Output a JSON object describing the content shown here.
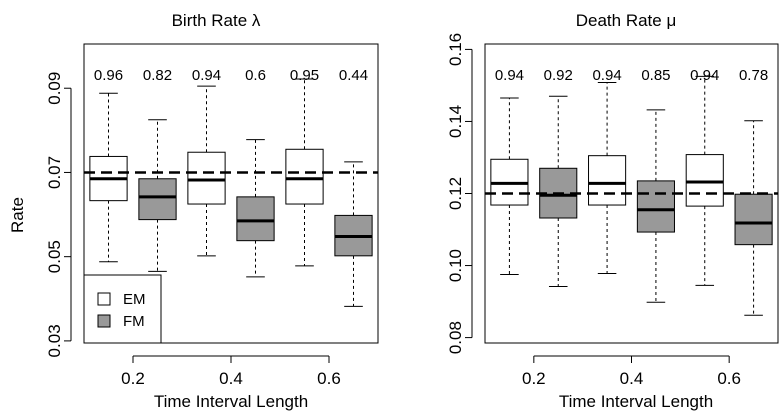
{
  "chart_data": [
    {
      "type": "box",
      "title": "Birth Rate λ",
      "xlabel": "Time Interval Length",
      "ylabel": "Rate",
      "ylim": [
        0.0295,
        0.1005
      ],
      "xlim": [
        0.1,
        0.7
      ],
      "yticks": [
        0.03,
        0.05,
        0.07,
        0.09
      ],
      "ytick_labels": [
        "0.03",
        "0.05",
        "0.07",
        "0.09"
      ],
      "xticks": [
        0.2,
        0.4,
        0.6
      ],
      "xtick_labels": [
        "0.2",
        "0.4",
        "0.6"
      ],
      "reference_line": 0.07,
      "legend": {
        "placement": "bottom-left",
        "entries": [
          {
            "label": "EM",
            "color": "#ffffff"
          },
          {
            "label": "FM",
            "color": "#999999"
          }
        ]
      },
      "boxes": [
        {
          "x": 0.15,
          "group": "EM",
          "whisker_low": 0.0488,
          "q1": 0.0633,
          "median": 0.0685,
          "q3": 0.0738,
          "whisker_high": 0.0888,
          "label": "0.96"
        },
        {
          "x": 0.25,
          "group": "FM",
          "whisker_low": 0.0465,
          "q1": 0.0588,
          "median": 0.0642,
          "q3": 0.0685,
          "whisker_high": 0.0825,
          "label": "0.82"
        },
        {
          "x": 0.35,
          "group": "EM",
          "whisker_low": 0.0502,
          "q1": 0.0625,
          "median": 0.0682,
          "q3": 0.0748,
          "whisker_high": 0.0905,
          "label": "0.94"
        },
        {
          "x": 0.45,
          "group": "FM",
          "whisker_low": 0.0452,
          "q1": 0.0538,
          "median": 0.0585,
          "q3": 0.0642,
          "whisker_high": 0.0778,
          "label": "0.6"
        },
        {
          "x": 0.55,
          "group": "EM",
          "whisker_low": 0.0478,
          "q1": 0.0625,
          "median": 0.0685,
          "q3": 0.0755,
          "whisker_high": 0.0922,
          "label": "0.95"
        },
        {
          "x": 0.65,
          "group": "FM",
          "whisker_low": 0.0382,
          "q1": 0.0502,
          "median": 0.0548,
          "q3": 0.0598,
          "whisker_high": 0.0725,
          "label": "0.44"
        }
      ]
    },
    {
      "type": "box",
      "title": "Death Rate μ",
      "xlabel": "Time Interval Length",
      "ylabel": "",
      "ylim": [
        0.0785,
        0.1615
      ],
      "xlim": [
        0.1,
        0.7
      ],
      "yticks": [
        0.08,
        0.1,
        0.12,
        0.14,
        0.16
      ],
      "ytick_labels": [
        "0.08",
        "0.10",
        "0.12",
        "0.14",
        "0.16"
      ],
      "xticks": [
        0.2,
        0.4,
        0.6
      ],
      "xtick_labels": [
        "0.2",
        "0.4",
        "0.6"
      ],
      "reference_line": 0.12,
      "boxes": [
        {
          "x": 0.15,
          "group": "EM",
          "whisker_low": 0.0975,
          "q1": 0.1168,
          "median": 0.1228,
          "q3": 0.1295,
          "whisker_high": 0.1465,
          "label": "0.94"
        },
        {
          "x": 0.25,
          "group": "FM",
          "whisker_low": 0.0942,
          "q1": 0.1132,
          "median": 0.1195,
          "q3": 0.127,
          "whisker_high": 0.147,
          "label": "0.92"
        },
        {
          "x": 0.35,
          "group": "EM",
          "whisker_low": 0.0978,
          "q1": 0.1168,
          "median": 0.1228,
          "q3": 0.1305,
          "whisker_high": 0.1508,
          "label": "0.94"
        },
        {
          "x": 0.45,
          "group": "FM",
          "whisker_low": 0.0898,
          "q1": 0.1093,
          "median": 0.1155,
          "q3": 0.1235,
          "whisker_high": 0.1432,
          "label": "0.85"
        },
        {
          "x": 0.55,
          "group": "EM",
          "whisker_low": 0.0945,
          "q1": 0.1165,
          "median": 0.1232,
          "q3": 0.1308,
          "whisker_high": 0.1525,
          "label": "0.94"
        },
        {
          "x": 0.65,
          "group": "FM",
          "whisker_low": 0.0862,
          "q1": 0.1058,
          "median": 0.1118,
          "q3": 0.1198,
          "whisker_high": 0.1402,
          "label": "0.78"
        }
      ]
    }
  ]
}
